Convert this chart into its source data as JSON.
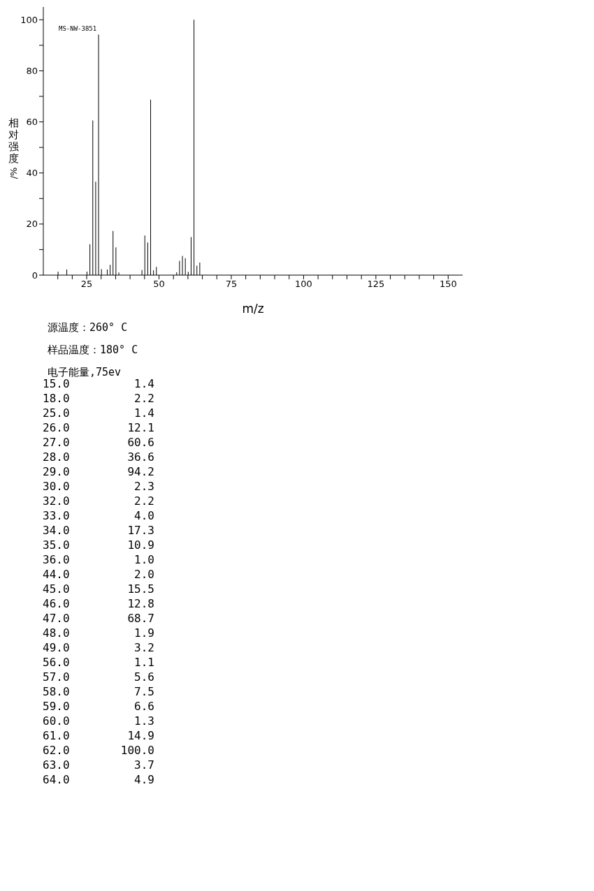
{
  "chart_data": [
    {
      "type": "bar",
      "xlabel": "m/z",
      "ylabel": "相对强度/%",
      "color": "#000000",
      "x": [
        15,
        18,
        25,
        26,
        27,
        28,
        29,
        30,
        32,
        33,
        34,
        35,
        36,
        44,
        45,
        46,
        47,
        48,
        49,
        56,
        57,
        58,
        59,
        60,
        61,
        62,
        63,
        64
      ],
      "values": [
        1.4,
        2.2,
        1.4,
        12.1,
        60.6,
        36.6,
        94.2,
        2.3,
        2.2,
        4.0,
        17.3,
        10.9,
        1.0,
        2.0,
        15.5,
        12.8,
        68.7,
        1.9,
        3.2,
        1.1,
        5.6,
        7.5,
        6.6,
        1.3,
        14.9,
        100.0,
        3.7,
        4.9
      ],
      "xlim": [
        10,
        155
      ],
      "xticks": [
        {
          "value": 15,
          "label": null
        },
        {
          "value": 20,
          "label": null
        },
        25,
        {
          "value": 30,
          "label": null
        },
        {
          "value": 35,
          "label": null
        },
        {
          "value": 40,
          "label": null
        },
        {
          "value": 45,
          "label": null
        },
        50,
        {
          "value": 55,
          "label": null
        },
        {
          "value": 60,
          "label": null
        },
        {
          "value": 65,
          "label": null
        },
        {
          "value": 70,
          "label": null
        },
        75,
        {
          "value": 80,
          "label": null
        },
        {
          "value": 85,
          "label": null
        },
        {
          "value": 90,
          "label": null
        },
        {
          "value": 95,
          "label": null
        },
        100,
        {
          "value": 105,
          "label": null
        },
        {
          "value": 110,
          "label": null
        },
        {
          "value": 115,
          "label": null
        },
        {
          "value": 120,
          "label": null
        },
        125,
        {
          "value": 130,
          "label": null
        },
        {
          "value": 135,
          "label": null
        },
        {
          "value": 140,
          "label": null
        },
        {
          "value": 145,
          "label": null
        },
        150
      ],
      "ylim": [
        0,
        105
      ],
      "yticks": [
        0,
        {
          "value": 10,
          "label": null
        },
        20,
        {
          "value": 30,
          "label": null
        },
        40,
        {
          "value": 50,
          "label": null
        },
        60,
        {
          "value": 70,
          "label": null
        },
        80,
        {
          "value": 90,
          "label": null
        },
        100
      ],
      "annotations": [
        "MS-NW-3851",
        "源温度：260° C",
        "样品温度：180° C",
        "电子能量,75ev"
      ]
    },
    {
      "type": "other",
      "value_labels": [
        "1.4",
        "2.2",
        "1.4",
        "12.1",
        "60.6",
        "36.6",
        "94.2",
        "2.3",
        "2.2",
        "4.0",
        "17.3",
        "10.9",
        "1.0",
        "2.0",
        "15.5",
        "12.8",
        "68.7",
        "1.9",
        "3.2",
        "1.1",
        "5.6",
        "7.5",
        "6.6",
        "1.3",
        "14.9",
        "100.0",
        "3.7",
        "4.9"
      ],
      "categories": [
        "15.0",
        "18.0",
        "25.0",
        "26.0",
        "27.0",
        "28.0",
        "29.0",
        "30.0",
        "32.0",
        "33.0",
        "34.0",
        "35.0",
        "36.0",
        "44.0",
        "45.0",
        "46.0",
        "47.0",
        "48.0",
        "49.0",
        "56.0",
        "57.0",
        "58.0",
        "59.0",
        "60.0",
        "61.0",
        "62.0",
        "63.0",
        "64.0"
      ]
    }
  ]
}
